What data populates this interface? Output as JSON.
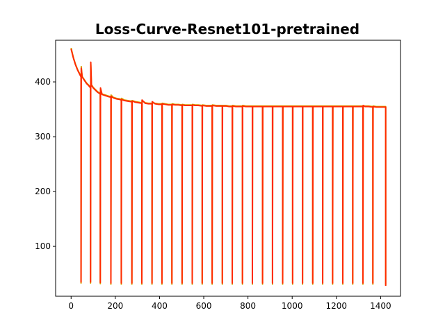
{
  "chart_data": {
    "type": "line",
    "title": "Loss-Curve-Resnet101-pretrained",
    "xlabel": "",
    "ylabel": "",
    "xlim": [
      -70,
      1490
    ],
    "ylim": [
      9,
      476
    ],
    "xticks": [
      0,
      200,
      400,
      600,
      800,
      1000,
      1200,
      1400
    ],
    "yticks": [
      100,
      200,
      300,
      400
    ],
    "grid": false,
    "legend": "none",
    "series": [
      {
        "color": "#d4a800",
        "spike_low": 32,
        "points": [
          [
            0,
            462
          ],
          [
            10,
            445
          ],
          [
            20,
            432
          ],
          [
            30,
            422
          ],
          [
            40,
            414
          ],
          [
            45,
            410
          ],
          [
            45,
            33
          ],
          [
            46,
            428
          ],
          [
            50,
            410
          ],
          [
            60,
            404
          ],
          [
            70,
            398
          ],
          [
            80,
            394
          ],
          [
            88,
            390
          ],
          [
            88,
            33
          ],
          [
            89,
            432
          ],
          [
            92,
            395
          ],
          [
            100,
            390
          ],
          [
            110,
            386
          ],
          [
            120,
            382
          ],
          [
            132,
            379
          ],
          [
            132,
            32
          ],
          [
            133,
            386
          ],
          [
            140,
            378
          ],
          [
            155,
            376
          ],
          [
            170,
            374
          ],
          [
            180,
            373
          ],
          [
            180,
            31
          ],
          [
            181,
            376
          ],
          [
            190,
            372
          ],
          [
            205,
            370
          ],
          [
            220,
            369
          ],
          [
            227,
            368
          ],
          [
            227,
            31
          ],
          [
            228,
            370
          ],
          [
            240,
            367
          ],
          [
            255,
            366
          ],
          [
            270,
            365
          ],
          [
            275,
            365
          ],
          [
            275,
            31
          ],
          [
            276,
            366
          ],
          [
            290,
            364
          ],
          [
            305,
            363
          ],
          [
            320,
            362
          ],
          [
            320,
            31
          ],
          [
            321,
            366
          ],
          [
            335,
            362
          ],
          [
            350,
            361
          ],
          [
            366,
            361
          ],
          [
            366,
            31
          ],
          [
            367,
            362
          ],
          [
            380,
            361
          ],
          [
            395,
            360
          ],
          [
            411,
            360
          ],
          [
            411,
            31
          ],
          [
            412,
            361
          ],
          [
            425,
            360
          ],
          [
            440,
            359
          ],
          [
            456,
            359
          ],
          [
            456,
            31
          ],
          [
            457,
            360
          ],
          [
            470,
            359
          ],
          [
            485,
            359
          ],
          [
            502,
            358
          ],
          [
            502,
            31
          ],
          [
            503,
            359
          ],
          [
            515,
            358
          ],
          [
            530,
            358
          ],
          [
            548,
            358
          ],
          [
            548,
            31
          ],
          [
            549,
            359
          ],
          [
            560,
            358
          ],
          [
            575,
            358
          ],
          [
            593,
            357
          ],
          [
            593,
            31
          ],
          [
            594,
            358
          ],
          [
            610,
            357
          ],
          [
            625,
            357
          ],
          [
            638,
            357
          ],
          [
            638,
            31
          ],
          [
            639,
            358
          ],
          [
            655,
            357
          ],
          [
            670,
            357
          ],
          [
            684,
            357
          ],
          [
            684,
            31
          ],
          [
            685,
            357
          ],
          [
            700,
            357
          ],
          [
            715,
            356
          ],
          [
            729,
            356
          ],
          [
            729,
            31
          ],
          [
            730,
            357
          ],
          [
            745,
            356
          ],
          [
            760,
            356
          ],
          [
            775,
            356
          ],
          [
            775,
            31
          ],
          [
            776,
            357
          ],
          [
            790,
            356
          ],
          [
            805,
            356
          ],
          [
            820,
            356
          ],
          [
            820,
            31
          ],
          [
            821,
            356
          ],
          [
            835,
            356
          ],
          [
            850,
            356
          ],
          [
            866,
            356
          ],
          [
            866,
            31
          ],
          [
            867,
            356
          ],
          [
            880,
            356
          ],
          [
            895,
            356
          ],
          [
            911,
            356
          ],
          [
            911,
            31
          ],
          [
            912,
            356
          ],
          [
            925,
            356
          ],
          [
            940,
            356
          ],
          [
            957,
            356
          ],
          [
            957,
            31
          ],
          [
            958,
            356
          ],
          [
            970,
            356
          ],
          [
            985,
            356
          ],
          [
            1002,
            356
          ],
          [
            1002,
            31
          ],
          [
            1003,
            356
          ],
          [
            1015,
            356
          ],
          [
            1030,
            356
          ],
          [
            1047,
            356
          ],
          [
            1047,
            31
          ],
          [
            1048,
            356
          ],
          [
            1060,
            356
          ],
          [
            1075,
            356
          ],
          [
            1093,
            356
          ],
          [
            1093,
            31
          ],
          [
            1094,
            356
          ],
          [
            1105,
            356
          ],
          [
            1120,
            356
          ],
          [
            1138,
            356
          ],
          [
            1138,
            31
          ],
          [
            1139,
            356
          ],
          [
            1150,
            356
          ],
          [
            1165,
            356
          ],
          [
            1183,
            356
          ],
          [
            1183,
            31
          ],
          [
            1184,
            356
          ],
          [
            1195,
            356
          ],
          [
            1210,
            356
          ],
          [
            1229,
            356
          ],
          [
            1229,
            31
          ],
          [
            1230,
            356
          ],
          [
            1240,
            356
          ],
          [
            1255,
            356
          ],
          [
            1274,
            356
          ],
          [
            1274,
            31
          ],
          [
            1275,
            356
          ],
          [
            1290,
            356
          ],
          [
            1305,
            356
          ],
          [
            1320,
            356
          ],
          [
            1320,
            31
          ],
          [
            1321,
            356
          ],
          [
            1330,
            356
          ],
          [
            1345,
            356
          ],
          [
            1365,
            355
          ],
          [
            1365,
            31
          ],
          [
            1366,
            356
          ],
          [
            1380,
            355
          ],
          [
            1395,
            355
          ],
          [
            1410,
            355
          ],
          [
            1423,
            355
          ],
          [
            1423,
            30
          ]
        ]
      },
      {
        "color": "#ff2a00",
        "spike_low": 35,
        "points": [
          [
            0,
            460
          ],
          [
            10,
            444
          ],
          [
            20,
            431
          ],
          [
            30,
            421
          ],
          [
            40,
            413
          ],
          [
            45,
            409
          ],
          [
            45,
            35
          ],
          [
            46,
            425
          ],
          [
            50,
            409
          ],
          [
            60,
            403
          ],
          [
            70,
            397
          ],
          [
            80,
            393
          ],
          [
            88,
            389
          ],
          [
            88,
            35
          ],
          [
            89,
            436
          ],
          [
            92,
            394
          ],
          [
            100,
            389
          ],
          [
            110,
            385
          ],
          [
            120,
            381
          ],
          [
            132,
            378
          ],
          [
            132,
            34
          ],
          [
            133,
            389
          ],
          [
            140,
            377
          ],
          [
            155,
            375
          ],
          [
            170,
            373
          ],
          [
            180,
            372
          ],
          [
            180,
            33
          ],
          [
            181,
            374
          ],
          [
            190,
            371
          ],
          [
            205,
            369
          ],
          [
            220,
            368
          ],
          [
            227,
            367
          ],
          [
            227,
            33
          ],
          [
            228,
            368
          ],
          [
            240,
            366
          ],
          [
            255,
            365
          ],
          [
            270,
            364
          ],
          [
            275,
            364
          ],
          [
            275,
            33
          ],
          [
            276,
            365
          ],
          [
            290,
            363
          ],
          [
            305,
            362
          ],
          [
            320,
            361
          ],
          [
            320,
            33
          ],
          [
            321,
            367
          ],
          [
            335,
            361
          ],
          [
            350,
            360
          ],
          [
            366,
            360
          ],
          [
            366,
            33
          ],
          [
            367,
            364
          ],
          [
            380,
            360
          ],
          [
            395,
            359
          ],
          [
            411,
            359
          ],
          [
            411,
            33
          ],
          [
            412,
            360
          ],
          [
            425,
            359
          ],
          [
            440,
            358
          ],
          [
            456,
            358
          ],
          [
            456,
            33
          ],
          [
            457,
            359
          ],
          [
            470,
            358
          ],
          [
            485,
            358
          ],
          [
            502,
            357
          ],
          [
            502,
            33
          ],
          [
            503,
            358
          ],
          [
            515,
            357
          ],
          [
            530,
            357
          ],
          [
            548,
            357
          ],
          [
            548,
            33
          ],
          [
            549,
            358
          ],
          [
            560,
            357
          ],
          [
            575,
            357
          ],
          [
            593,
            356
          ],
          [
            593,
            33
          ],
          [
            594,
            357
          ],
          [
            610,
            356
          ],
          [
            625,
            356
          ],
          [
            638,
            356
          ],
          [
            638,
            33
          ],
          [
            639,
            357
          ],
          [
            655,
            356
          ],
          [
            670,
            356
          ],
          [
            684,
            356
          ],
          [
            684,
            33
          ],
          [
            685,
            356
          ],
          [
            700,
            356
          ],
          [
            715,
            355
          ],
          [
            729,
            355
          ],
          [
            729,
            33
          ],
          [
            730,
            356
          ],
          [
            745,
            355
          ],
          [
            760,
            355
          ],
          [
            775,
            355
          ],
          [
            775,
            33
          ],
          [
            776,
            356
          ],
          [
            790,
            355
          ],
          [
            805,
            355
          ],
          [
            820,
            355
          ],
          [
            820,
            33
          ],
          [
            821,
            355
          ],
          [
            835,
            355
          ],
          [
            850,
            355
          ],
          [
            866,
            355
          ],
          [
            866,
            33
          ],
          [
            867,
            355
          ],
          [
            880,
            355
          ],
          [
            895,
            355
          ],
          [
            911,
            355
          ],
          [
            911,
            33
          ],
          [
            912,
            355
          ],
          [
            925,
            355
          ],
          [
            940,
            355
          ],
          [
            957,
            355
          ],
          [
            957,
            33
          ],
          [
            958,
            355
          ],
          [
            970,
            355
          ],
          [
            985,
            355
          ],
          [
            1002,
            355
          ],
          [
            1002,
            33
          ],
          [
            1003,
            355
          ],
          [
            1015,
            355
          ],
          [
            1030,
            355
          ],
          [
            1047,
            355
          ],
          [
            1047,
            33
          ],
          [
            1048,
            355
          ],
          [
            1060,
            355
          ],
          [
            1075,
            355
          ],
          [
            1093,
            355
          ],
          [
            1093,
            33
          ],
          [
            1094,
            355
          ],
          [
            1105,
            355
          ],
          [
            1120,
            355
          ],
          [
            1138,
            355
          ],
          [
            1138,
            33
          ],
          [
            1139,
            355
          ],
          [
            1150,
            355
          ],
          [
            1165,
            355
          ],
          [
            1183,
            355
          ],
          [
            1183,
            33
          ],
          [
            1184,
            355
          ],
          [
            1195,
            355
          ],
          [
            1210,
            355
          ],
          [
            1229,
            355
          ],
          [
            1229,
            33
          ],
          [
            1230,
            355
          ],
          [
            1240,
            355
          ],
          [
            1255,
            355
          ],
          [
            1274,
            355
          ],
          [
            1274,
            33
          ],
          [
            1275,
            355
          ],
          [
            1290,
            355
          ],
          [
            1305,
            355
          ],
          [
            1320,
            355
          ],
          [
            1320,
            33
          ],
          [
            1321,
            357
          ],
          [
            1330,
            355
          ],
          [
            1345,
            355
          ],
          [
            1365,
            354
          ],
          [
            1365,
            33
          ],
          [
            1366,
            355
          ],
          [
            1380,
            354
          ],
          [
            1395,
            354
          ],
          [
            1410,
            354
          ],
          [
            1423,
            354
          ],
          [
            1423,
            28
          ]
        ]
      }
    ]
  }
}
